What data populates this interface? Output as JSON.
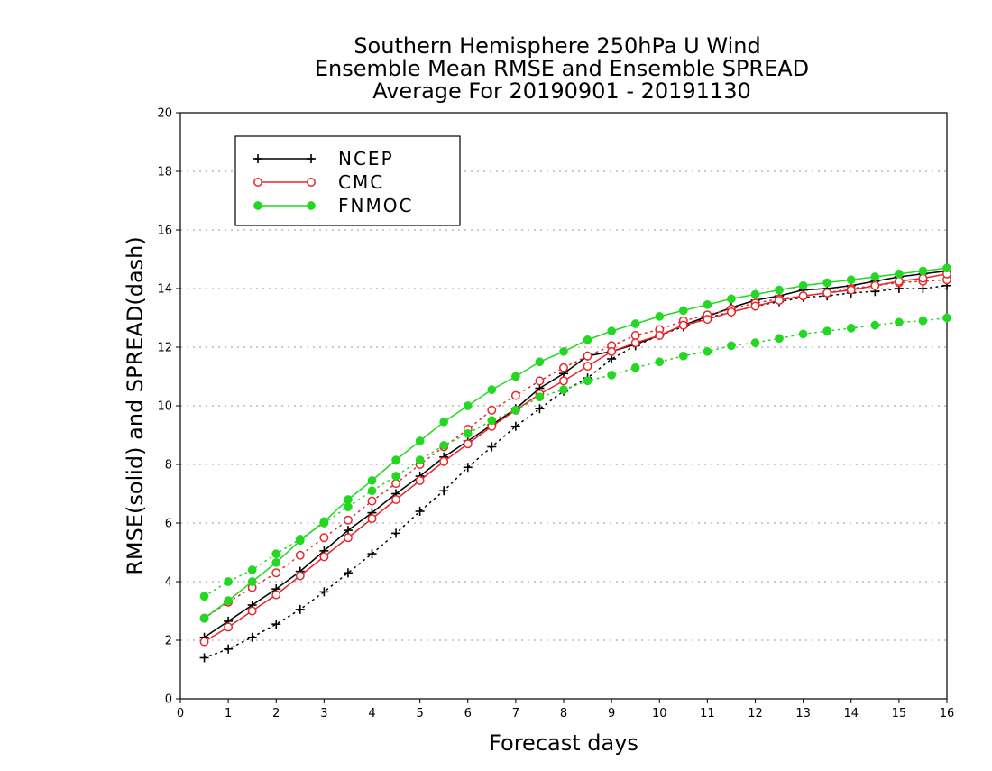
{
  "chart_data": {
    "type": "line",
    "title": [
      "Southern Hemisphere 250hPa U Wind",
      "Ensemble Mean RMSE and Ensemble SPREAD",
      "Average For 20190901 - 20191130"
    ],
    "xlabel": "Forecast days",
    "ylabel": "RMSE(solid) and SPREAD(dash)",
    "xlim": [
      0,
      16
    ],
    "ylim": [
      0,
      20
    ],
    "xticks": [
      0,
      1,
      2,
      3,
      4,
      5,
      6,
      7,
      8,
      9,
      10,
      11,
      12,
      13,
      14,
      15,
      16
    ],
    "yticks": [
      0,
      2,
      4,
      6,
      8,
      10,
      12,
      14,
      16,
      18,
      20
    ],
    "grid": true,
    "legend_position": "top-left",
    "x": [
      0.5,
      1,
      1.5,
      2,
      2.5,
      3,
      3.5,
      4,
      4.5,
      5,
      5.5,
      6,
      6.5,
      7,
      7.5,
      8,
      8.5,
      9,
      9.5,
      10,
      10.5,
      11,
      11.5,
      12,
      12.5,
      13,
      13.5,
      14,
      14.5,
      15,
      15.5,
      16
    ],
    "series": [
      {
        "name": "NCEP",
        "color": "#000000",
        "marker": "plus",
        "rmse": [
          2.1,
          2.65,
          3.2,
          3.75,
          4.35,
          5.05,
          5.75,
          6.35,
          7.0,
          7.6,
          8.25,
          8.8,
          9.35,
          9.9,
          10.6,
          11.1,
          11.7,
          11.85,
          12.1,
          12.4,
          12.75,
          13.05,
          13.35,
          13.6,
          13.75,
          13.95,
          14.0,
          14.1,
          14.25,
          14.4,
          14.5,
          14.6
        ],
        "spread": [
          1.4,
          1.7,
          2.1,
          2.55,
          3.05,
          3.65,
          4.3,
          4.95,
          5.65,
          6.4,
          7.1,
          7.9,
          8.6,
          9.3,
          9.9,
          10.5,
          10.95,
          11.6,
          12.05,
          12.4,
          12.7,
          13.0,
          13.2,
          13.4,
          13.55,
          13.7,
          13.75,
          13.85,
          13.9,
          14.0,
          14.0,
          14.1
        ]
      },
      {
        "name": "CMC",
        "color": "#e8262a",
        "marker": "open-circle",
        "rmse": [
          1.95,
          2.45,
          3.0,
          3.55,
          4.2,
          4.85,
          5.5,
          6.15,
          6.8,
          7.45,
          8.1,
          8.7,
          9.3,
          9.85,
          10.4,
          10.85,
          11.35,
          11.85,
          12.15,
          12.4,
          12.75,
          12.95,
          13.2,
          13.4,
          13.6,
          13.75,
          13.85,
          13.95,
          14.1,
          14.25,
          14.35,
          14.5
        ],
        "spread": [
          2.75,
          3.3,
          3.8,
          4.3,
          4.9,
          5.5,
          6.1,
          6.75,
          7.35,
          8.0,
          8.6,
          9.2,
          9.85,
          10.35,
          10.85,
          11.3,
          11.7,
          12.05,
          12.4,
          12.6,
          12.9,
          13.1,
          13.3,
          13.5,
          13.65,
          13.75,
          13.85,
          14.0,
          14.1,
          14.2,
          14.25,
          14.3
        ]
      },
      {
        "name": "FNMOC",
        "color": "#22d822",
        "marker": "filled-circle",
        "rmse": [
          2.75,
          3.35,
          4.0,
          4.65,
          5.4,
          6.05,
          6.8,
          7.45,
          8.15,
          8.8,
          9.45,
          10.0,
          10.55,
          11.0,
          11.5,
          11.85,
          12.25,
          12.55,
          12.8,
          13.05,
          13.25,
          13.45,
          13.65,
          13.8,
          13.95,
          14.1,
          14.2,
          14.3,
          14.4,
          14.5,
          14.6,
          14.7
        ],
        "spread": [
          3.5,
          4.0,
          4.4,
          4.95,
          5.45,
          6.0,
          6.55,
          7.1,
          7.6,
          8.15,
          8.65,
          9.05,
          9.5,
          9.85,
          10.3,
          10.55,
          10.85,
          11.05,
          11.3,
          11.5,
          11.7,
          11.85,
          12.05,
          12.15,
          12.3,
          12.45,
          12.55,
          12.65,
          12.75,
          12.85,
          12.9,
          13.0
        ]
      }
    ]
  }
}
